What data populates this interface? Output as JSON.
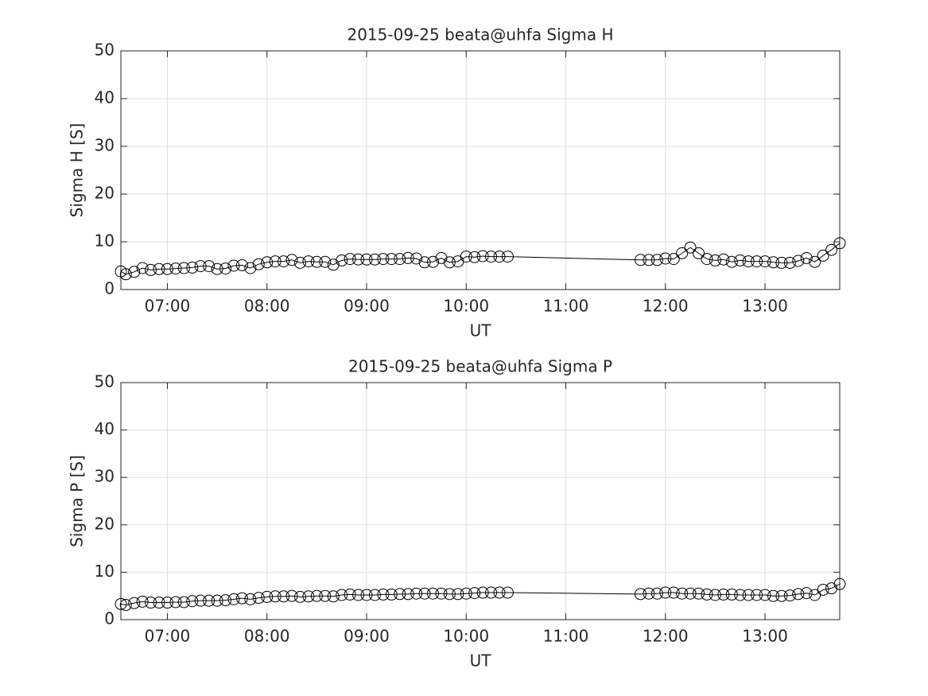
{
  "chart_data": [
    {
      "type": "line",
      "title": "2015-09-25  beata@uhfa Sigma H",
      "xlabel": "UT",
      "ylabel": "Sigma H [S]",
      "x": [
        "06:32",
        "06:35",
        "06:40",
        "06:45",
        "06:50",
        "06:55",
        "07:00",
        "07:05",
        "07:10",
        "07:15",
        "07:20",
        "07:25",
        "07:30",
        "07:35",
        "07:40",
        "07:45",
        "07:50",
        "07:55",
        "08:00",
        "08:05",
        "08:10",
        "08:15",
        "08:20",
        "08:25",
        "08:30",
        "08:35",
        "08:40",
        "08:45",
        "08:50",
        "08:55",
        "09:00",
        "09:05",
        "09:10",
        "09:15",
        "09:20",
        "09:25",
        "09:30",
        "09:35",
        "09:40",
        "09:45",
        "09:50",
        "09:55",
        "10:00",
        "10:05",
        "10:10",
        "10:15",
        "10:20",
        "10:25",
        "11:45",
        "11:50",
        "11:55",
        "12:00",
        "12:05",
        "12:10",
        "12:15",
        "12:20",
        "12:25",
        "12:30",
        "12:35",
        "12:40",
        "12:45",
        "12:50",
        "12:55",
        "13:00",
        "13:05",
        "13:10",
        "13:15",
        "13:20",
        "13:25",
        "13:30",
        "13:35",
        "13:40",
        "13:45"
      ],
      "values": [
        3.8,
        3.2,
        3.7,
        4.5,
        4.1,
        4.3,
        4.3,
        4.4,
        4.5,
        4.6,
        4.9,
        4.9,
        4.3,
        4.4,
        5.0,
        5.1,
        4.5,
        5.3,
        5.7,
        5.9,
        5.9,
        6.2,
        5.6,
        5.9,
        5.8,
        5.8,
        5.2,
        6.1,
        6.4,
        6.3,
        6.3,
        6.3,
        6.4,
        6.4,
        6.4,
        6.6,
        6.5,
        5.7,
        5.8,
        6.6,
        5.7,
        5.9,
        6.9,
        6.8,
        7.0,
        6.9,
        6.9,
        6.9,
        6.2,
        6.2,
        6.2,
        6.5,
        6.4,
        7.6,
        8.8,
        7.6,
        6.4,
        6.1,
        6.3,
        5.8,
        6.1,
        5.9,
        5.9,
        5.9,
        5.7,
        5.6,
        5.6,
        6.0,
        6.6,
        5.8,
        7.1,
        8.3,
        9.7
      ],
      "color": "#000000",
      "marker": "circle",
      "grid": true,
      "xlim": [
        "06:32",
        "13:45"
      ],
      "xticks": [
        "07:00",
        "08:00",
        "09:00",
        "10:00",
        "11:00",
        "12:00",
        "13:00"
      ],
      "ylim": [
        0,
        50
      ],
      "yticks": [
        0,
        10,
        20,
        30,
        40,
        50
      ]
    },
    {
      "type": "line",
      "title": "2015-09-25  beata@uhfa Sigma P",
      "xlabel": "UT",
      "ylabel": "Sigma P [S]",
      "x": [
        "06:32",
        "06:35",
        "06:40",
        "06:45",
        "06:50",
        "06:55",
        "07:00",
        "07:05",
        "07:10",
        "07:15",
        "07:20",
        "07:25",
        "07:30",
        "07:35",
        "07:40",
        "07:45",
        "07:50",
        "07:55",
        "08:00",
        "08:05",
        "08:10",
        "08:15",
        "08:20",
        "08:25",
        "08:30",
        "08:35",
        "08:40",
        "08:45",
        "08:50",
        "08:55",
        "09:00",
        "09:05",
        "09:10",
        "09:15",
        "09:20",
        "09:25",
        "09:30",
        "09:35",
        "09:40",
        "09:45",
        "09:50",
        "09:55",
        "10:00",
        "10:05",
        "10:10",
        "10:15",
        "10:20",
        "10:25",
        "11:45",
        "11:50",
        "11:55",
        "12:00",
        "12:05",
        "12:10",
        "12:15",
        "12:20",
        "12:25",
        "12:30",
        "12:35",
        "12:40",
        "12:45",
        "12:50",
        "12:55",
        "13:00",
        "13:05",
        "13:10",
        "13:15",
        "13:20",
        "13:25",
        "13:30",
        "13:35",
        "13:40",
        "13:45"
      ],
      "values": [
        3.3,
        3.1,
        3.5,
        3.8,
        3.6,
        3.6,
        3.6,
        3.7,
        3.7,
        3.9,
        4.0,
        4.0,
        4.0,
        4.1,
        4.3,
        4.5,
        4.3,
        4.6,
        4.8,
        4.9,
        4.9,
        5.0,
        4.8,
        4.9,
        5.0,
        5.0,
        4.9,
        5.2,
        5.3,
        5.2,
        5.2,
        5.2,
        5.3,
        5.3,
        5.4,
        5.4,
        5.5,
        5.5,
        5.5,
        5.5,
        5.4,
        5.4,
        5.5,
        5.6,
        5.7,
        5.7,
        5.7,
        5.7,
        5.4,
        5.5,
        5.5,
        5.7,
        5.7,
        5.5,
        5.5,
        5.5,
        5.3,
        5.2,
        5.3,
        5.3,
        5.2,
        5.2,
        5.2,
        5.2,
        5.0,
        5.0,
        5.1,
        5.4,
        5.6,
        5.2,
        6.3,
        6.6,
        7.5
      ],
      "color": "#000000",
      "marker": "circle",
      "grid": true,
      "xlim": [
        "06:32",
        "13:45"
      ],
      "xticks": [
        "07:00",
        "08:00",
        "09:00",
        "10:00",
        "11:00",
        "12:00",
        "13:00"
      ],
      "ylim": [
        0,
        50
      ],
      "yticks": [
        0,
        10,
        20,
        30,
        40,
        50
      ]
    }
  ]
}
